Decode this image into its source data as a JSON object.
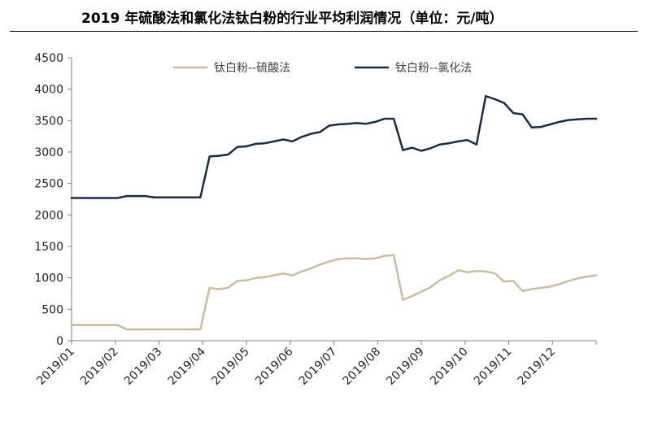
{
  "title": "2019 年硫酸法和氯化法钛白粉的行业平均利润情况（单位：元/吨）",
  "chart_data": {
    "type": "line",
    "title": "2019 年硫酸法和氯化法钛白粉的行业平均利润情况（单位：元/吨）",
    "xlabel": "",
    "ylabel": "",
    "ylim": [
      0,
      4500
    ],
    "yticks": [
      0,
      500,
      1000,
      1500,
      2000,
      2500,
      3000,
      3500,
      4000,
      4500
    ],
    "xticks": [
      "2019/01",
      "2019/02",
      "2019/03",
      "2019/04",
      "2019/05",
      "2019/06",
      "2019/07",
      "2019/08",
      "2019/09",
      "2019/10",
      "2019/11",
      "2019/12"
    ],
    "grid": false,
    "legend_position": "top",
    "series": [
      {
        "name": "钛白粉--硫酸法",
        "color": "#c8bd9c",
        "values": [
          250,
          250,
          250,
          250,
          250,
          250,
          180,
          180,
          180,
          180,
          180,
          180,
          180,
          180,
          180,
          840,
          820,
          840,
          950,
          960,
          1000,
          1010,
          1040,
          1070,
          1040,
          1100,
          1150,
          1210,
          1260,
          1300,
          1310,
          1310,
          1300,
          1310,
          1350,
          1360,
          650,
          710,
          780,
          850,
          960,
          1030,
          1120,
          1090,
          1110,
          1100,
          1070,
          940,
          950,
          790,
          820,
          840,
          860,
          900,
          950,
          990,
          1020,
          1040
        ]
      },
      {
        "name": "钛白粉--氯化法",
        "color": "#1a2b45",
        "values": [
          2270,
          2270,
          2270,
          2270,
          2270,
          2270,
          2300,
          2300,
          2300,
          2280,
          2280,
          2280,
          2280,
          2280,
          2280,
          2930,
          2940,
          2960,
          3080,
          3090,
          3130,
          3140,
          3170,
          3200,
          3170,
          3240,
          3290,
          3320,
          3420,
          3440,
          3450,
          3460,
          3450,
          3480,
          3530,
          3530,
          3030,
          3070,
          3020,
          3060,
          3120,
          3140,
          3170,
          3190,
          3120,
          3890,
          3840,
          3780,
          3620,
          3600,
          3390,
          3400,
          3440,
          3480,
          3510,
          3520,
          3530,
          3530
        ]
      }
    ]
  }
}
